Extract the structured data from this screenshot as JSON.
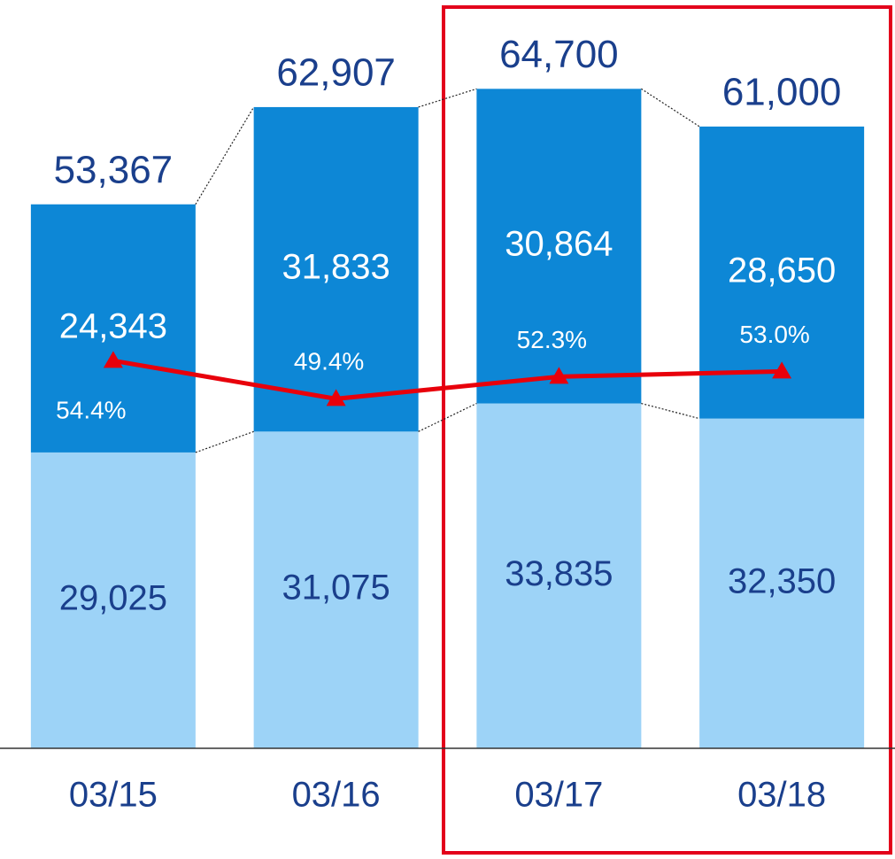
{
  "chart_data": {
    "type": "stacked_bar_line",
    "categories": [
      "03/15",
      "03/16",
      "03/17",
      "03/18"
    ],
    "series": [
      {
        "name": null,
        "color": "#9dd3f7",
        "values": [
          29025,
          31075,
          33835,
          32350
        ],
        "value_labels": [
          "29,025",
          "31,075",
          "33,835",
          "32,350"
        ]
      },
      {
        "name": null,
        "color": "#0d87d6",
        "values": [
          24343,
          31833,
          30864,
          28650
        ],
        "value_labels": [
          "24,343",
          "31,833",
          "30,864",
          "28,650"
        ]
      }
    ],
    "totals": [
      53367,
      62907,
      64700,
      61000
    ],
    "total_labels": [
      "53,367",
      "62,907",
      "64,700",
      "61,000"
    ],
    "line": {
      "color": "#e8000b",
      "axis": "y2",
      "values": [
        54.4,
        49.4,
        52.3,
        53.0
      ],
      "value_labels": [
        "54.4%",
        "49.4%",
        "52.3%",
        "53.0%"
      ]
    },
    "ylim": [
      0,
      70000
    ],
    "y2lim": [
      3.5,
      97.2
    ],
    "grid": false
  }
}
